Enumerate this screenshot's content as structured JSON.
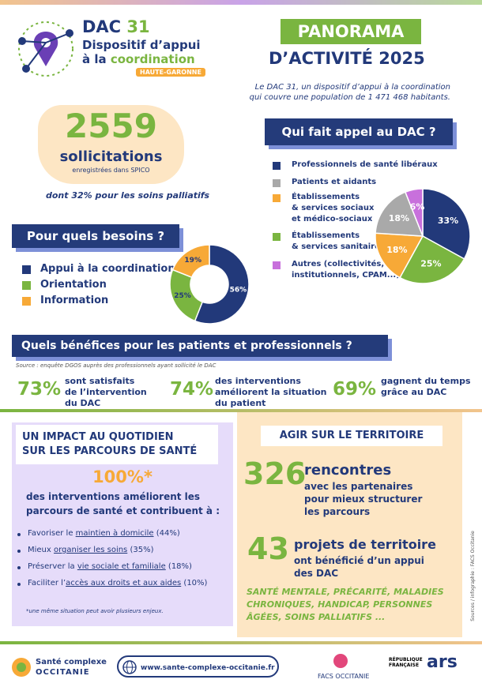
{
  "header": {
    "dac": "DAC",
    "num": "31",
    "sub1": "Dispositif d’appui",
    "sub2a": "à la ",
    "sub2b": "coordination",
    "badge": "HAUTE-GARONNE",
    "panorama": "PANORAMA",
    "title": "D’ACTIVITÉ 2025",
    "intro": [
      "Le DAC 31, un dispositif d’appui à la coordination",
      "qui couvre une population de 1 471 468 habitants."
    ]
  },
  "solicitations": {
    "number": "2559",
    "label": "sollicitations",
    "sub": "enregistrées dans SPICO",
    "note": "dont 32% pour les soins palliatifs"
  },
  "who": {
    "title": "Qui fait appel au DAC ?",
    "type": "pie",
    "categories": [
      [
        "Professionnels de santé libéraux"
      ],
      [
        "Patients et aidants"
      ],
      [
        "Établissements",
        "& services sociaux",
        "et médico-sociaux"
      ],
      [
        "Établissements",
        "& services sanitaires"
      ],
      [
        "Autres (collectivités,",
        "institutionnels, CPAM...)"
      ]
    ],
    "colors": [
      "#22397a",
      "#a9a9a9",
      "#f7a937",
      "#7ab540",
      "#c870dc"
    ],
    "values": [
      33,
      18,
      18,
      25,
      6
    ],
    "value_labels": [
      "33%",
      "18%",
      "18%",
      "25%",
      "6%"
    ]
  },
  "needs": {
    "title": "Pour quels besoins ?",
    "type": "donut",
    "categories": [
      "Appui à la coordination",
      "Orientation",
      "Information"
    ],
    "colors": [
      "#22397a",
      "#7ab540",
      "#f7a937"
    ],
    "values": [
      56,
      25,
      19
    ],
    "value_labels": [
      "56%",
      "25%",
      "19%"
    ]
  },
  "benefits": {
    "title": "Quels bénéfices pour les patients et professionnels ?",
    "source": "Source : enquête DGOS auprès des professionnels ayant sollicité le DAC",
    "items": [
      {
        "value": "73%",
        "text": [
          "sont satisfaits",
          "de l’intervention",
          "du DAC"
        ]
      },
      {
        "value": "74%",
        "text": [
          "des interventions",
          "améliorent la situation",
          "du patient"
        ]
      },
      {
        "value": "69%",
        "text": [
          "gagnent du temps",
          "grâce au DAC"
        ]
      }
    ]
  },
  "impact": {
    "title": [
      "UN IMPACT AU QUOTIDIEN",
      "SUR LES PARCOURS DE SANTÉ"
    ],
    "value": "100%*",
    "text": [
      "des interventions améliorent les",
      "parcours de santé et contribuent à :"
    ],
    "bullets": [
      [
        "Favoriser le ",
        "maintien à domicile",
        " (44%)"
      ],
      [
        "Mieux ",
        "organiser les soins",
        " (35%)"
      ],
      [
        "Préserver la ",
        "vie sociale et familiale",
        " (18%)"
      ],
      [
        "Faciliter l’",
        "accès aux droits et aux aides",
        " (10%)"
      ]
    ],
    "footnote": "*une même situation peut avoir plusieurs enjeux."
  },
  "territory": {
    "title": "AGIR SUR LE TERRITOIRE",
    "meetings": {
      "value": "326",
      "label": "rencontres",
      "text": [
        "avec les partenaires",
        "pour mieux structurer",
        "les parcours"
      ]
    },
    "projects": {
      "value": "43",
      "label": "projets de territoire",
      "text": [
        "ont bénéficié d’un appui",
        "des DAC"
      ]
    },
    "topics": [
      "SANTÉ MENTALE, PRÉCARITÉ, MALADIES",
      "CHRONIQUES, HANDICAP, PERSONNES",
      "ÂGÉES, SOINS PALLIATIFS ..."
    ]
  },
  "side_note": "Sources / infographie : FACS Occitanie",
  "footer": {
    "sco1": "Santé complexe",
    "sco2": "OCCITANIE",
    "url": "www.sante-complexe-occitanie.fr",
    "facs": "FACS OCCITANIE",
    "rf": [
      "RÉPUBLIQUE",
      "FRANÇAISE"
    ],
    "ars": "ars"
  }
}
